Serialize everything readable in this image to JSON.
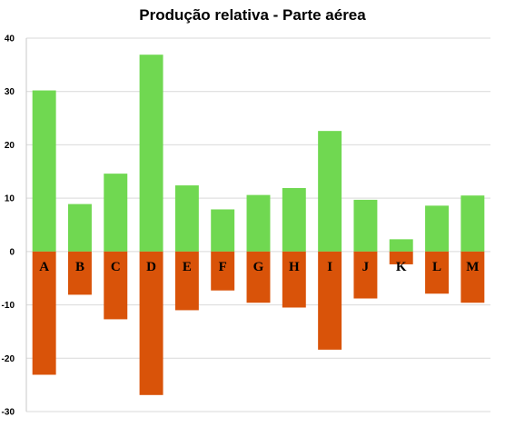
{
  "chart_data": {
    "type": "bar",
    "title": "Produção relativa - Parte aérea",
    "xlabel": "",
    "ylabel": "",
    "categories": [
      "A",
      "B",
      "C",
      "D",
      "E",
      "F",
      "G",
      "H",
      "I",
      "J",
      "K",
      "L",
      "M"
    ],
    "series": [
      {
        "color": "#70d851",
        "values": [
          30.2,
          8.9,
          14.6,
          36.9,
          12.4,
          7.9,
          10.6,
          11.9,
          22.6,
          9.7,
          2.3,
          8.6,
          10.5
        ]
      },
      {
        "color": "#d95309",
        "values": [
          -23.1,
          -8.1,
          -12.7,
          -26.9,
          -11.0,
          -7.3,
          -9.6,
          -10.5,
          -18.4,
          -8.8,
          -2.4,
          -7.9,
          -9.6
        ]
      }
    ],
    "ylim": [
      -30,
      40
    ],
    "yticks": [
      40,
      30,
      20,
      10,
      0,
      -10,
      -20,
      -30
    ],
    "grid": true,
    "legend": "none"
  }
}
